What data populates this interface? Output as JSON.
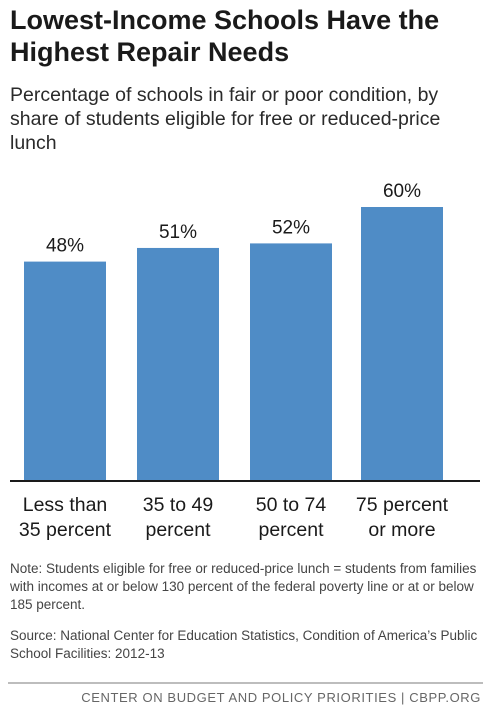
{
  "title": "Lowest-Income Schools Have the Highest Repair Needs",
  "subtitle": "Percentage of schools in fair or poor condition, by share of students eligible for free or reduced-price lunch",
  "chart_data": {
    "type": "bar",
    "categories": [
      "Less than 35 percent",
      "35 to 49 percent",
      "50 to 74 percent",
      "75 percent or more"
    ],
    "category_lines": [
      [
        "Less than",
        "35 percent"
      ],
      [
        "35 to 49",
        "percent"
      ],
      [
        "50 to 74",
        "percent"
      ],
      [
        "75 percent",
        "or more"
      ]
    ],
    "values": [
      48,
      51,
      52,
      60
    ],
    "data_labels": [
      "48%",
      "51%",
      "52%",
      "60%"
    ],
    "title": "Lowest-Income Schools Have the Highest Repair Needs",
    "subtitle": "Percentage of schools in fair or poor condition, by share of students eligible for free or reduced-price lunch",
    "xlabel": "",
    "ylabel": "",
    "ylim": [
      0,
      60
    ],
    "grid": false,
    "legend": "none",
    "bar_color": "#4f8cc6",
    "axis_color": "#1a1a1a"
  },
  "note": "Note: Students eligible for free or reduced-price lunch = students from families with incomes at or below 130 percent of the federal poverty line or at or below 185 percent.",
  "source": "Source: National Center for Education Statistics, Condition of America’s Public School Facilities: 2012-13",
  "footer": "CENTER ON BUDGET AND POLICY PRIORITIES | CBPP.ORG"
}
